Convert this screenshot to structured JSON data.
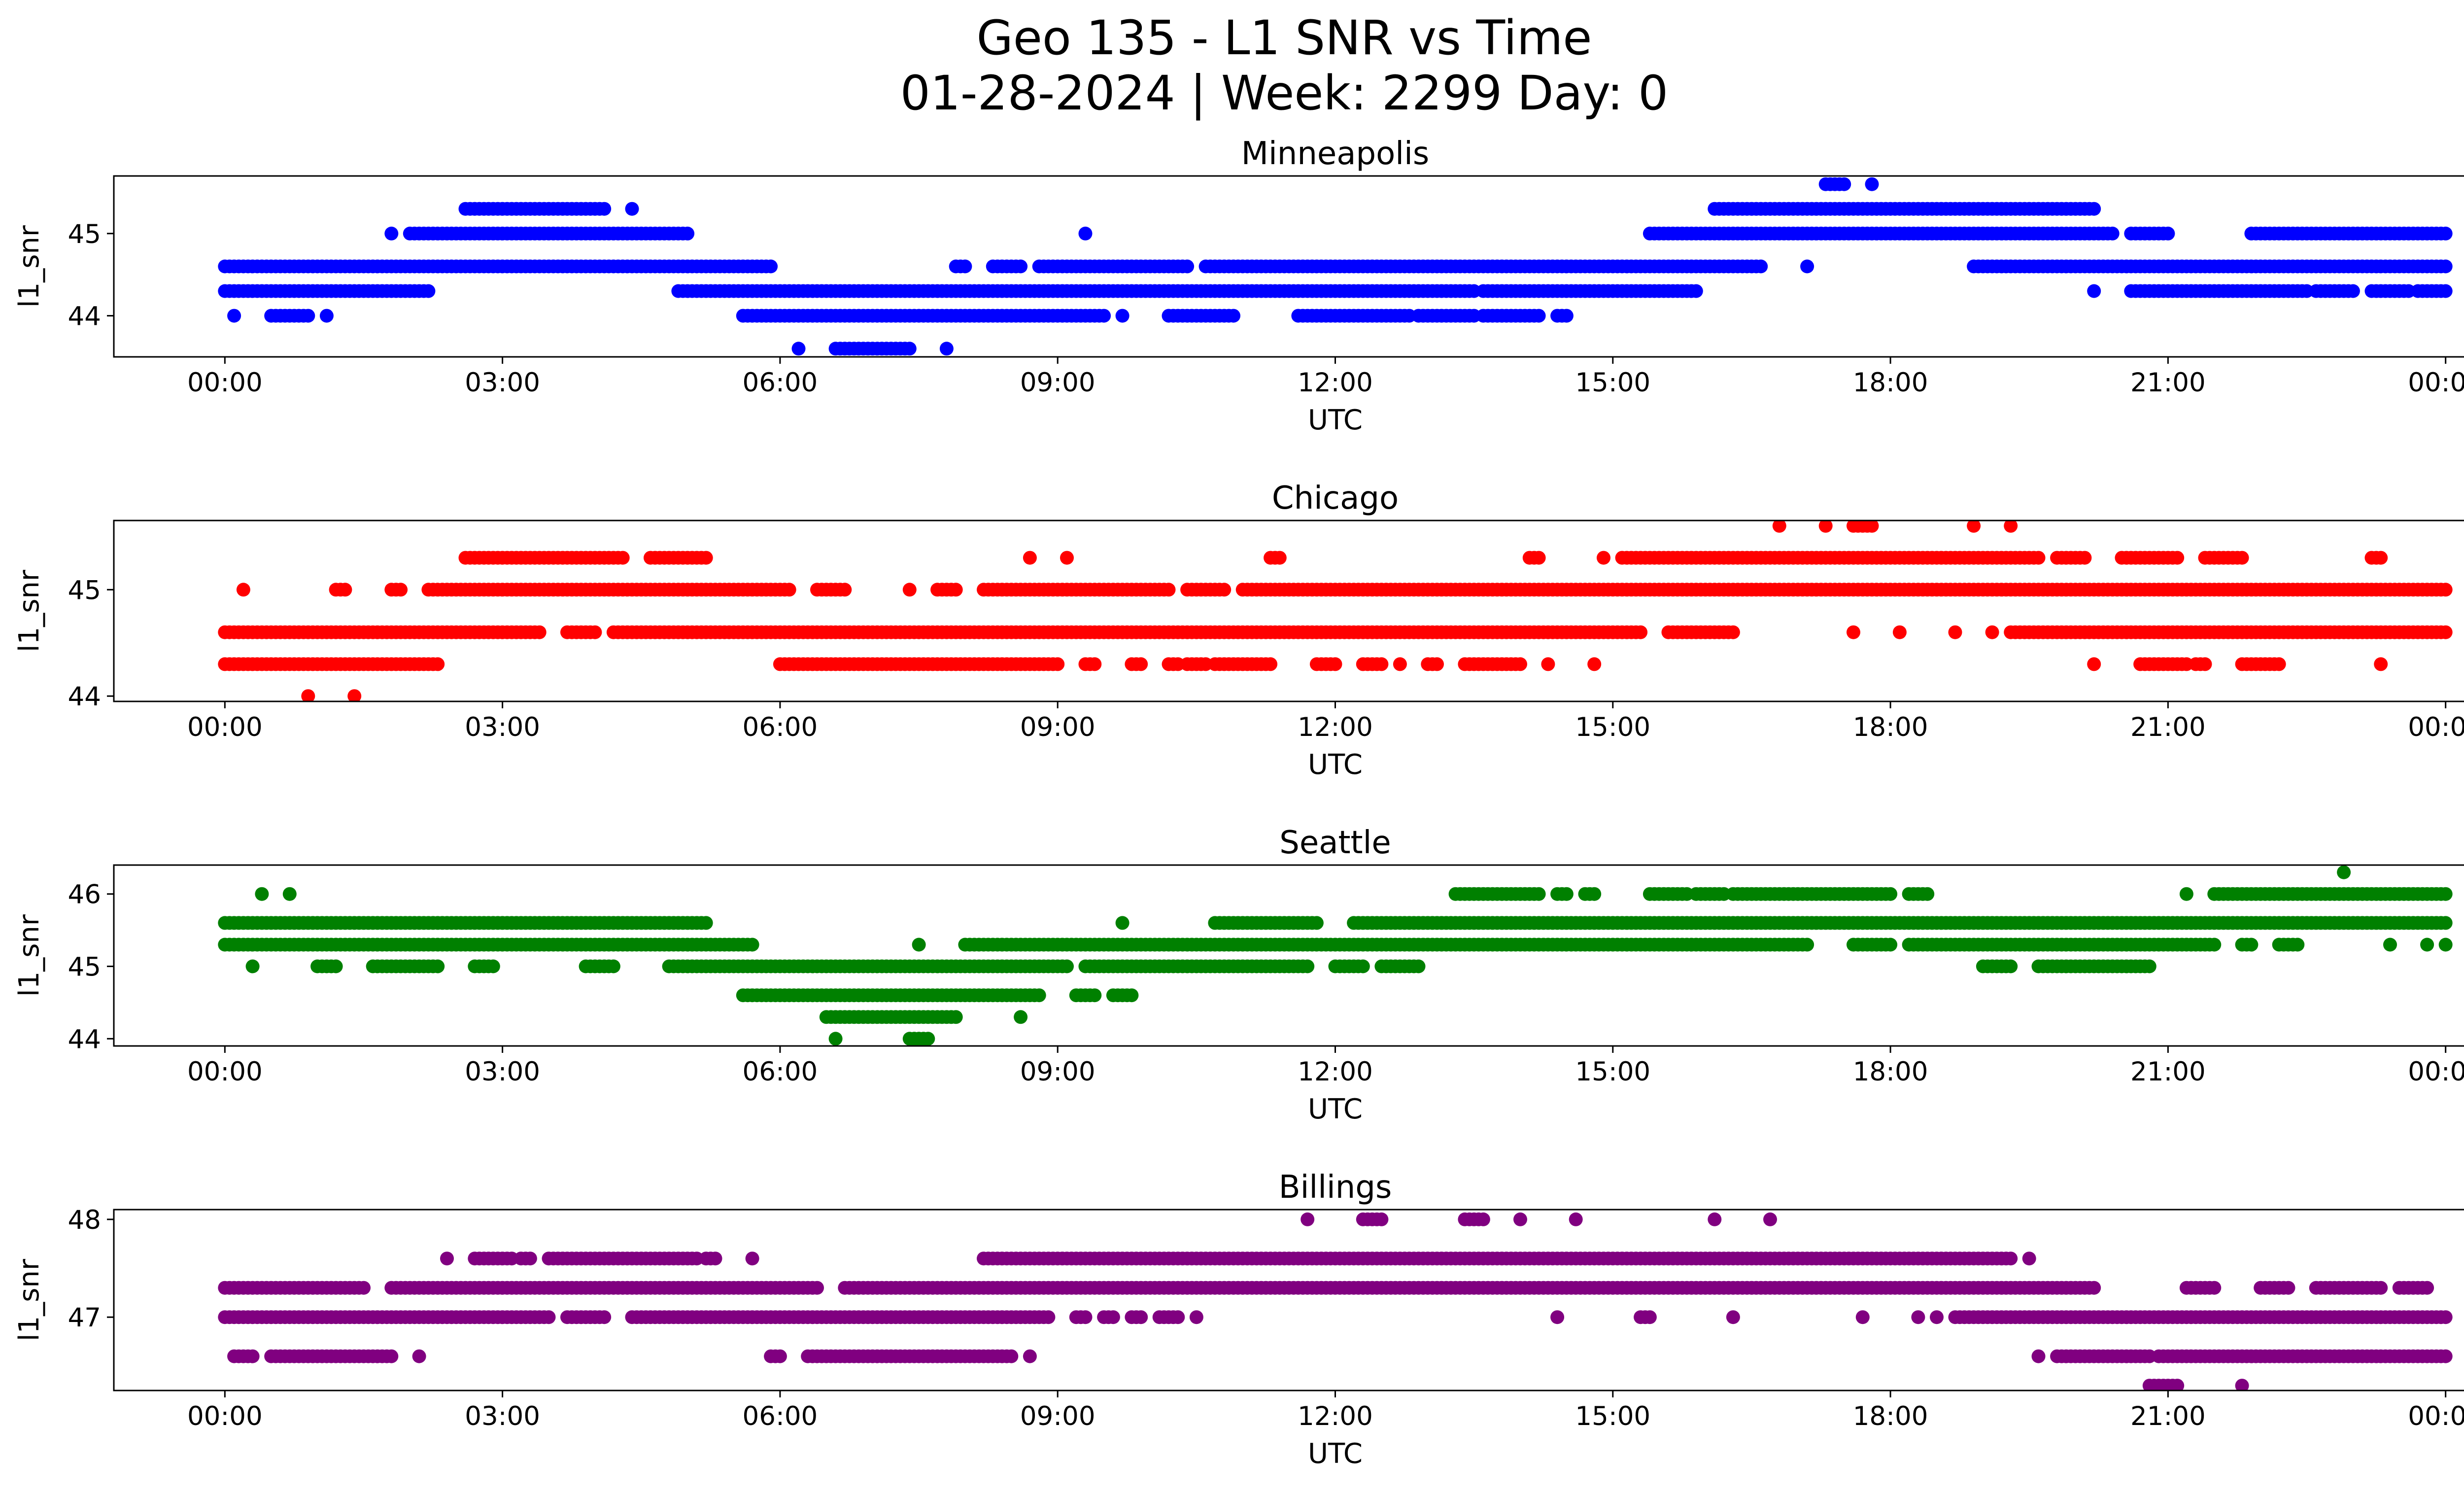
{
  "figure": {
    "title_line1": "Geo 135 - L1 SNR vs Time",
    "title_line2": "01-28-2024 | Week: 2299 Day: 0"
  },
  "chart_data": [
    {
      "type": "scatter",
      "title": "Minneapolis",
      "xlabel": "UTC",
      "ylabel": "l1_snr",
      "color": "#0000ff",
      "x_unit": "hours UTC",
      "xlim": [
        -1.2,
        25.2
      ],
      "ylim": [
        43.5,
        45.7
      ],
      "x_ticks": [
        0,
        3,
        6,
        9,
        12,
        15,
        18,
        21,
        24
      ],
      "x_tick_labels": [
        "00:00",
        "03:00",
        "06:00",
        "09:00",
        "12:00",
        "15:00",
        "18:00",
        "21:00",
        "00:00"
      ],
      "y_ticks": [
        44,
        45
      ],
      "y_tick_labels": [
        "44",
        "45"
      ],
      "grid": false,
      "segments": [
        {
          "y": 44.6,
          "x": [
            [
              0,
              5.9
            ],
            [
              7.9,
              8.0
            ],
            [
              8.3,
              8.6
            ],
            [
              8.8,
              10.4
            ],
            [
              10.6,
              16.6
            ],
            [
              17.1,
              17.1
            ],
            [
              18.9,
              24
            ]
          ]
        },
        {
          "y": 44.3,
          "x": [
            [
              0,
              2.2
            ],
            [
              4.9,
              13.5
            ],
            [
              13.6,
              15.9
            ],
            [
              20.2,
              20.2
            ],
            [
              20.6,
              22.5
            ],
            [
              22.6,
              23.0
            ],
            [
              23.2,
              23.6
            ],
            [
              23.7,
              24
            ]
          ]
        },
        {
          "y": 44.0,
          "x": [
            [
              0.1,
              0.1
            ],
            [
              0.5,
              0.9
            ],
            [
              1.1,
              1.1
            ],
            [
              5.6,
              9.5
            ],
            [
              9.7,
              9.7
            ],
            [
              10.2,
              10.9
            ],
            [
              11.6,
              12.8
            ],
            [
              12.9,
              13.5
            ],
            [
              13.6,
              14.2
            ],
            [
              14.4,
              14.5
            ]
          ]
        },
        {
          "y": 43.6,
          "x": [
            [
              6.2,
              6.2
            ],
            [
              6.6,
              7.4
            ],
            [
              7.8,
              7.8
            ]
          ]
        },
        {
          "y": 45.0,
          "x": [
            [
              1.8,
              1.8
            ],
            [
              2.0,
              5.0
            ],
            [
              9.3,
              9.3
            ],
            [
              15.4,
              20.4
            ],
            [
              20.6,
              21.0
            ],
            [
              21.9,
              24
            ]
          ]
        },
        {
          "y": 45.3,
          "x": [
            [
              2.6,
              4.1
            ],
            [
              4.4,
              4.4
            ],
            [
              16.1,
              20.2
            ]
          ]
        },
        {
          "y": 45.6,
          "x": [
            [
              17.3,
              17.5
            ],
            [
              17.8,
              17.8
            ]
          ]
        }
      ]
    },
    {
      "type": "scatter",
      "title": "Chicago",
      "xlabel": "UTC",
      "ylabel": "l1_snr",
      "color": "#ff0000",
      "x_unit": "hours UTC",
      "xlim": [
        -1.2,
        25.2
      ],
      "ylim": [
        43.95,
        45.65
      ],
      "x_ticks": [
        0,
        3,
        6,
        9,
        12,
        15,
        18,
        21,
        24
      ],
      "x_tick_labels": [
        "00:00",
        "03:00",
        "06:00",
        "09:00",
        "12:00",
        "15:00",
        "18:00",
        "21:00",
        "00:00"
      ],
      "y_ticks": [
        44,
        45
      ],
      "y_tick_labels": [
        "44",
        "45"
      ],
      "grid": false,
      "segments": [
        {
          "y": 44.6,
          "x": [
            [
              0,
              3.4
            ],
            [
              3.7,
              4.0
            ],
            [
              4.2,
              15.3
            ],
            [
              15.6,
              16.3
            ],
            [
              17.6,
              17.6
            ],
            [
              18.1,
              18.1
            ],
            [
              18.7,
              18.7
            ],
            [
              19.1,
              19.1
            ],
            [
              19.3,
              24
            ]
          ]
        },
        {
          "y": 44.3,
          "x": [
            [
              0,
              2.3
            ],
            [
              6.0,
              9.0
            ],
            [
              9.3,
              9.4
            ],
            [
              9.8,
              9.9
            ],
            [
              10.2,
              10.3
            ],
            [
              10.4,
              10.6
            ],
            [
              10.7,
              11.3
            ],
            [
              11.8,
              12.0
            ],
            [
              12.3,
              12.5
            ],
            [
              12.7,
              12.7
            ],
            [
              13.0,
              13.1
            ],
            [
              13.4,
              14.0
            ],
            [
              14.3,
              14.3
            ],
            [
              14.8,
              14.8
            ],
            [
              20.2,
              20.2
            ],
            [
              20.7,
              21.2
            ],
            [
              21.3,
              21.4
            ],
            [
              21.8,
              22.2
            ],
            [
              23.3,
              23.3
            ]
          ]
        },
        {
          "y": 44.0,
          "x": [
            [
              0.9,
              0.9
            ],
            [
              1.4,
              1.4
            ]
          ]
        },
        {
          "y": 45.0,
          "x": [
            [
              0.2,
              0.2
            ],
            [
              1.2,
              1.3
            ],
            [
              1.8,
              1.9
            ],
            [
              2.2,
              6.1
            ],
            [
              6.4,
              6.7
            ],
            [
              7.4,
              7.4
            ],
            [
              7.7,
              7.9
            ],
            [
              8.2,
              10.2
            ],
            [
              10.4,
              10.8
            ],
            [
              11.0,
              24
            ]
          ]
        },
        {
          "y": 45.3,
          "x": [
            [
              2.6,
              4.3
            ],
            [
              4.6,
              5.2
            ],
            [
              8.7,
              8.7
            ],
            [
              9.1,
              9.1
            ],
            [
              11.3,
              11.4
            ],
            [
              14.1,
              14.2
            ],
            [
              14.9,
              14.9
            ],
            [
              15.1,
              19.6
            ],
            [
              19.8,
              20.1
            ],
            [
              20.5,
              21.1
            ],
            [
              21.4,
              21.8
            ],
            [
              23.2,
              23.3
            ]
          ]
        },
        {
          "y": 45.6,
          "x": [
            [
              16.8,
              16.8
            ],
            [
              17.3,
              17.3
            ],
            [
              17.6,
              17.8
            ],
            [
              18.9,
              18.9
            ],
            [
              19.3,
              19.3
            ]
          ]
        }
      ]
    },
    {
      "type": "scatter",
      "title": "Seattle",
      "xlabel": "UTC",
      "ylabel": "l1_snr",
      "color": "#008000",
      "x_unit": "hours UTC",
      "xlim": [
        -1.2,
        25.2
      ],
      "ylim": [
        43.9,
        46.4
      ],
      "x_ticks": [
        0,
        3,
        6,
        9,
        12,
        15,
        18,
        21,
        24
      ],
      "x_tick_labels": [
        "00:00",
        "03:00",
        "06:00",
        "09:00",
        "12:00",
        "15:00",
        "18:00",
        "21:00",
        "00:00"
      ],
      "y_ticks": [
        44,
        45,
        46
      ],
      "y_tick_labels": [
        "44",
        "45",
        "46"
      ],
      "grid": false,
      "segments": [
        {
          "y": 45.6,
          "x": [
            [
              0,
              5.2
            ],
            [
              9.7,
              9.7
            ],
            [
              10.7,
              11.8
            ],
            [
              12.2,
              24
            ]
          ]
        },
        {
          "y": 45.3,
          "x": [
            [
              0,
              5.7
            ],
            [
              7.5,
              7.5
            ],
            [
              8.0,
              17.1
            ],
            [
              17.6,
              18.0
            ],
            [
              18.2,
              21.5
            ],
            [
              21.8,
              21.9
            ],
            [
              22.2,
              22.4
            ],
            [
              23.4,
              23.4
            ],
            [
              23.8,
              23.8
            ],
            [
              24,
              24
            ]
          ]
        },
        {
          "y": 45.0,
          "x": [
            [
              0.3,
              0.3
            ],
            [
              1.0,
              1.2
            ],
            [
              1.6,
              2.3
            ],
            [
              2.7,
              2.9
            ],
            [
              3.9,
              4.2
            ],
            [
              4.8,
              9.1
            ],
            [
              9.3,
              11.7
            ],
            [
              12.0,
              12.3
            ],
            [
              12.5,
              12.9
            ],
            [
              19.0,
              19.3
            ],
            [
              19.6,
              20.8
            ]
          ]
        },
        {
          "y": 44.6,
          "x": [
            [
              5.6,
              8.8
            ],
            [
              9.2,
              9.4
            ],
            [
              9.6,
              9.8
            ]
          ]
        },
        {
          "y": 44.3,
          "x": [
            [
              6.5,
              7.9
            ],
            [
              8.6,
              8.6
            ]
          ]
        },
        {
          "y": 44.0,
          "x": [
            [
              6.6,
              6.6
            ],
            [
              7.4,
              7.6
            ]
          ]
        },
        {
          "y": 46.0,
          "x": [
            [
              0.4,
              0.4
            ],
            [
              0.7,
              0.7
            ],
            [
              13.3,
              14.2
            ],
            [
              14.4,
              14.5
            ],
            [
              14.7,
              14.8
            ],
            [
              15.4,
              15.8
            ],
            [
              15.9,
              16.2
            ],
            [
              16.3,
              18.0
            ],
            [
              18.2,
              18.4
            ],
            [
              21.2,
              21.2
            ],
            [
              21.5,
              24
            ]
          ]
        },
        {
          "y": 46.3,
          "x": [
            [
              22.9,
              22.9
            ]
          ]
        }
      ]
    },
    {
      "type": "scatter",
      "title": "Billings",
      "xlabel": "UTC",
      "ylabel": "l1_snr",
      "color": "#800080",
      "x_unit": "hours UTC",
      "xlim": [
        -1.2,
        25.2
      ],
      "ylim": [
        46.25,
        48.1
      ],
      "x_ticks": [
        0,
        3,
        6,
        9,
        12,
        15,
        18,
        21,
        24
      ],
      "x_tick_labels": [
        "00:00",
        "03:00",
        "06:00",
        "09:00",
        "12:00",
        "15:00",
        "18:00",
        "21:00",
        "00:00"
      ],
      "y_ticks": [
        48,
        47
      ],
      "y_tick_labels": [
        "48",
        "47"
      ],
      "grid": false,
      "segments": [
        {
          "y": 47.3,
          "x": [
            [
              0,
              1.5
            ],
            [
              1.8,
              6.4
            ],
            [
              6.7,
              20.2
            ],
            [
              21.2,
              21.5
            ],
            [
              22.0,
              22.3
            ],
            [
              22.6,
              23.3
            ],
            [
              23.5,
              23.8
            ]
          ]
        },
        {
          "y": 47.0,
          "x": [
            [
              0,
              3.5
            ],
            [
              3.7,
              4.1
            ],
            [
              4.4,
              8.9
            ],
            [
              9.2,
              9.3
            ],
            [
              9.5,
              9.6
            ],
            [
              9.8,
              9.9
            ],
            [
              10.1,
              10.3
            ],
            [
              10.5,
              10.5
            ],
            [
              14.4,
              14.4
            ],
            [
              15.3,
              15.4
            ],
            [
              16.3,
              16.3
            ],
            [
              17.7,
              17.7
            ],
            [
              18.3,
              18.3
            ],
            [
              18.5,
              18.5
            ],
            [
              18.7,
              24
            ]
          ]
        },
        {
          "y": 46.6,
          "x": [
            [
              0.1,
              0.3
            ],
            [
              0.5,
              1.8
            ],
            [
              2.1,
              2.1
            ],
            [
              5.9,
              6.0
            ],
            [
              6.3,
              8.5
            ],
            [
              8.7,
              8.7
            ],
            [
              19.6,
              19.6
            ],
            [
              19.8,
              20.8
            ],
            [
              20.9,
              24
            ]
          ]
        },
        {
          "y": 46.3,
          "x": [
            [
              20.8,
              21.1
            ],
            [
              21.8,
              21.8
            ]
          ]
        },
        {
          "y": 47.6,
          "x": [
            [
              2.4,
              2.4
            ],
            [
              2.7,
              3.1
            ],
            [
              3.2,
              3.3
            ],
            [
              3.5,
              5.1
            ],
            [
              5.2,
              5.3
            ],
            [
              5.7,
              5.7
            ],
            [
              8.2,
              19.3
            ],
            [
              19.5,
              19.5
            ]
          ]
        },
        {
          "y": 48.0,
          "x": [
            [
              11.7,
              11.7
            ],
            [
              12.3,
              12.5
            ],
            [
              13.4,
              13.6
            ],
            [
              14.0,
              14.0
            ],
            [
              14.6,
              14.6
            ],
            [
              16.1,
              16.1
            ],
            [
              16.7,
              16.7
            ]
          ]
        }
      ]
    }
  ]
}
